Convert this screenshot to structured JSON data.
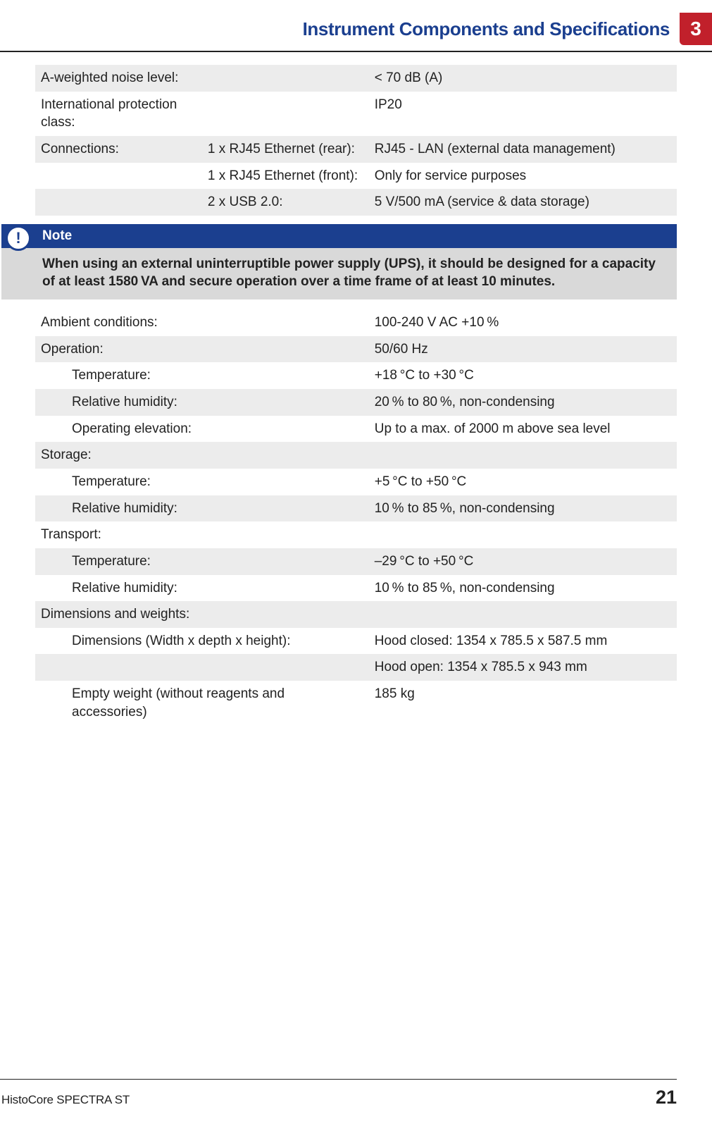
{
  "header": {
    "chapter_title": "Instrument Components and Specifications",
    "chapter_number": "3"
  },
  "colors": {
    "accent_blue": "#1b3f8f",
    "accent_red": "#c1202b",
    "row_gray": "#ececec",
    "note_body_bg": "#d9d9d9",
    "text": "#222222"
  },
  "table1": {
    "rows": [
      {
        "shade": "gray",
        "a": "A-weighted noise level:",
        "b": "",
        "c": "< 70 dB (A)"
      },
      {
        "shade": "white",
        "a": "International protection class:",
        "b": "",
        "c": "IP20"
      },
      {
        "shade": "gray",
        "a": "Connections:",
        "b": "1 x RJ45 Ethernet (rear):",
        "c": "RJ45 - LAN (external data management)"
      },
      {
        "shade": "white",
        "a": "",
        "b": "1 x RJ45 Ethernet (front):",
        "c": "Only for service purposes"
      },
      {
        "shade": "gray",
        "a": "",
        "b": "2 x USB 2.0:",
        "c": "5 V/500 mA (service & data storage)"
      }
    ]
  },
  "note": {
    "title": "Note",
    "body": "When using an external uninterruptible power supply (UPS), it should be designed for a capacity of at least 1580 VA and secure operation over a time frame of at least 10 minutes."
  },
  "table2": {
    "rows": [
      {
        "shade": "white",
        "indent": false,
        "a": "Ambient conditions:",
        "c": "100-240 V AC +10 %"
      },
      {
        "shade": "gray",
        "indent": false,
        "a": "Operation:",
        "c": "50/60 Hz"
      },
      {
        "shade": "white",
        "indent": true,
        "a": "Temperature:",
        "c": "+18 °C to +30 °C"
      },
      {
        "shade": "gray",
        "indent": true,
        "a": "Relative humidity:",
        "c": "20 % to 80 %, non-condensing"
      },
      {
        "shade": "white",
        "indent": true,
        "a": "Operating elevation:",
        "c": "Up to a max. of 2000 m above sea level"
      },
      {
        "shade": "gray",
        "indent": false,
        "a": "Storage:",
        "c": ""
      },
      {
        "shade": "white",
        "indent": true,
        "a": "Temperature:",
        "c": "+5 °C to +50 °C"
      },
      {
        "shade": "gray",
        "indent": true,
        "a": "Relative humidity:",
        "c": "10 % to 85 %, non-condensing"
      },
      {
        "shade": "white",
        "indent": false,
        "a": "Transport:",
        "c": ""
      },
      {
        "shade": "gray",
        "indent": true,
        "a": "Temperature:",
        "c": "–29 °C to +50 °C"
      },
      {
        "shade": "white",
        "indent": true,
        "a": "Relative humidity:",
        "c": "10 % to 85 %, non-condensing"
      },
      {
        "shade": "gray",
        "indent": false,
        "a": "Dimensions and weights:",
        "c": ""
      },
      {
        "shade": "white",
        "indent": true,
        "a": "Dimensions (Width x depth x height):",
        "c": "Hood closed: 1354 x 785.5 x 587.5 mm"
      },
      {
        "shade": "gray",
        "indent": true,
        "a": "",
        "c": "Hood open: 1354 x 785.5 x 943 mm"
      },
      {
        "shade": "white",
        "indent": true,
        "a": "Empty weight (without reagents and accessories)",
        "c": "185 kg"
      }
    ]
  },
  "footer": {
    "product": "HistoCore SPECTRA ST",
    "page": "21"
  }
}
